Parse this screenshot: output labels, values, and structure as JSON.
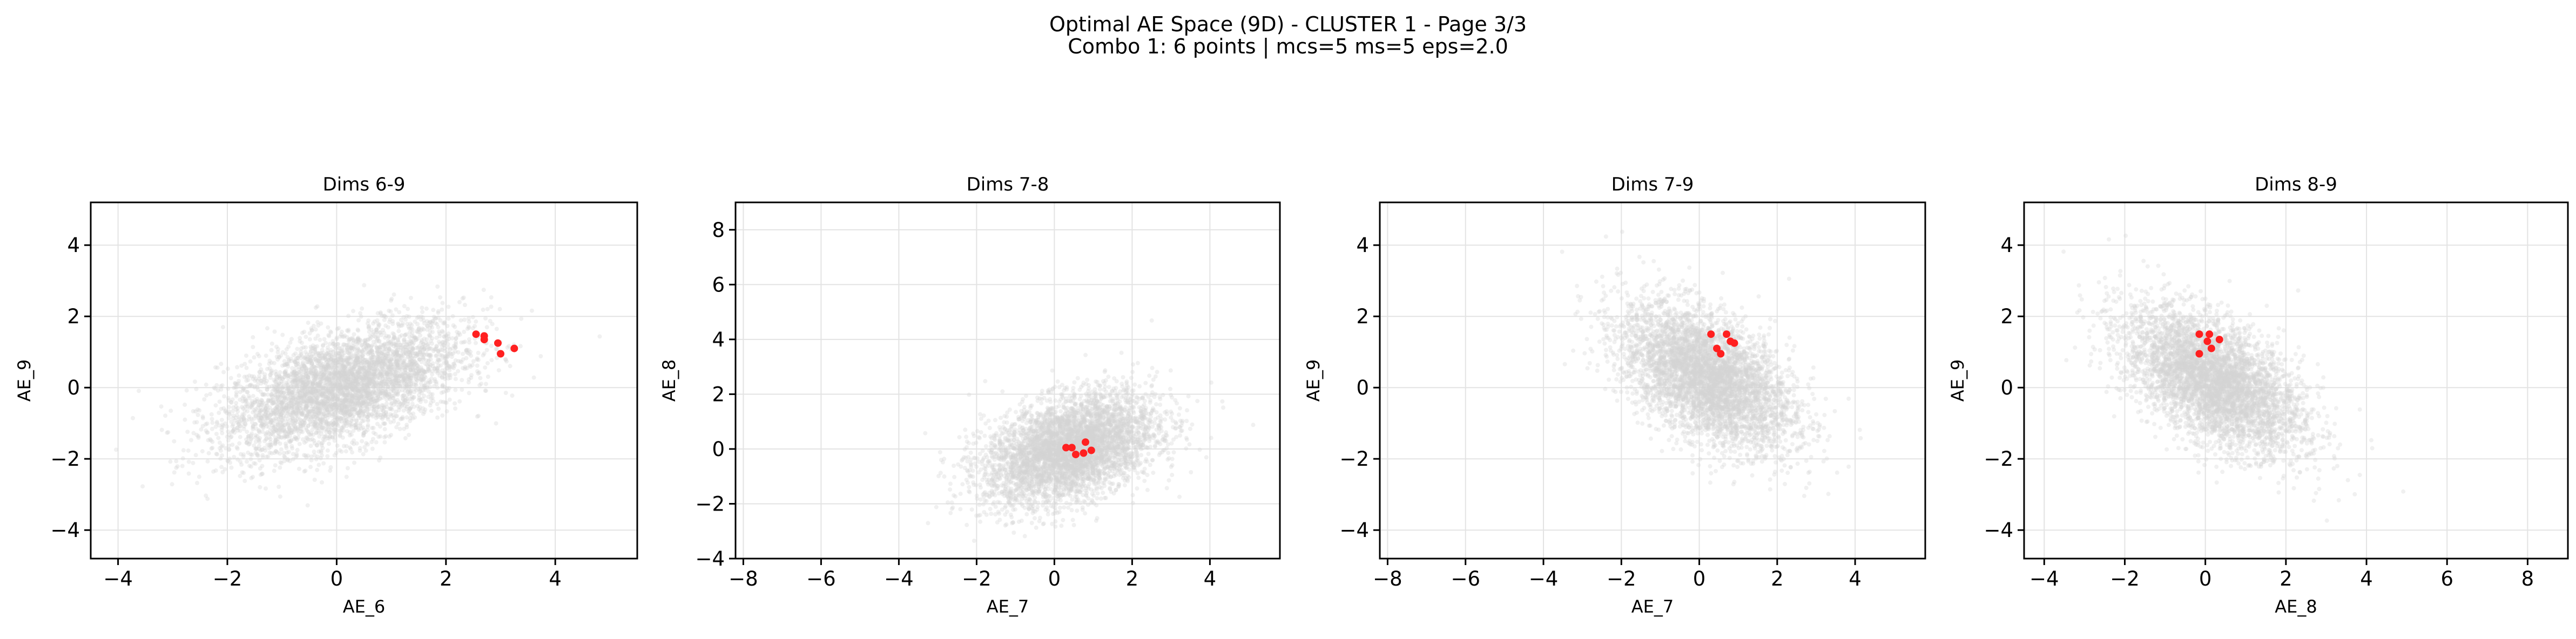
{
  "figure": {
    "title_line1": "Optimal AE Space (9D) - CLUSTER 1 - Page 3/3",
    "title_line2": "Combo 1: 6 points | mcs=5 ms=5 eps=2.0"
  },
  "colors": {
    "background_points": "#d3d3d3",
    "cluster_points": "#ff2020",
    "grid": "#e3e3e3"
  },
  "chart_data": [
    {
      "type": "scatter",
      "title": "Dims 6-9",
      "xlabel": "AE_6",
      "ylabel": "AE_9",
      "xlim": [
        -4.5,
        5.5
      ],
      "ylim": [
        -4.8,
        5.2
      ],
      "xticks": [
        -4,
        -2,
        0,
        2,
        4
      ],
      "yticks": [
        -4,
        -2,
        0,
        2,
        4
      ],
      "grid": true,
      "background_cloud": {
        "cx": 0.1,
        "cy": 0.0,
        "sx": 1.1,
        "sy": 0.9,
        "rho": 0.55
      },
      "cluster_points": [
        [
          2.55,
          1.5
        ],
        [
          2.7,
          1.45
        ],
        [
          2.7,
          1.35
        ],
        [
          2.95,
          1.25
        ],
        [
          3.0,
          0.95
        ],
        [
          3.25,
          1.1
        ]
      ]
    },
    {
      "type": "scatter",
      "title": "Dims 7-8",
      "xlabel": "AE_7",
      "ylabel": "AE_8",
      "xlim": [
        -8.2,
        5.8
      ],
      "ylim": [
        -4.0,
        9.0
      ],
      "xticks": [
        -8,
        -6,
        -4,
        -2,
        0,
        2,
        4
      ],
      "yticks": [
        -4,
        -2,
        0,
        2,
        4,
        6,
        8
      ],
      "grid": true,
      "background_cloud": {
        "cx": 0.4,
        "cy": 0.0,
        "sx": 1.1,
        "sy": 1.0,
        "rho": 0.4
      },
      "cluster_points": [
        [
          0.3,
          0.05
        ],
        [
          0.45,
          0.05
        ],
        [
          0.55,
          -0.2
        ],
        [
          0.75,
          -0.15
        ],
        [
          0.8,
          0.25
        ],
        [
          0.95,
          -0.05
        ]
      ]
    },
    {
      "type": "scatter",
      "title": "Dims 7-9",
      "xlabel": "AE_7",
      "ylabel": "AE_9",
      "xlim": [
        -8.2,
        5.8
      ],
      "ylim": [
        -4.8,
        5.2
      ],
      "xticks": [
        -8,
        -6,
        -4,
        -2,
        0,
        2,
        4
      ],
      "yticks": [
        -4,
        -2,
        0,
        2,
        4
      ],
      "grid": true,
      "background_cloud": {
        "cx": 0.2,
        "cy": 0.3,
        "sx": 1.1,
        "sy": 1.0,
        "rho": -0.5
      },
      "cluster_points": [
        [
          0.3,
          1.5
        ],
        [
          0.45,
          1.1
        ],
        [
          0.55,
          0.95
        ],
        [
          0.7,
          1.5
        ],
        [
          0.8,
          1.3
        ],
        [
          0.9,
          1.25
        ]
      ]
    },
    {
      "type": "scatter",
      "title": "Dims 8-9",
      "xlabel": "AE_8",
      "ylabel": "AE_9",
      "xlim": [
        -4.5,
        9.0
      ],
      "ylim": [
        -4.8,
        5.2
      ],
      "xticks": [
        -4,
        -2,
        0,
        2,
        4,
        6,
        8
      ],
      "yticks": [
        -4,
        -2,
        0,
        2,
        4
      ],
      "grid": true,
      "background_cloud": {
        "cx": 0.2,
        "cy": 0.2,
        "sx": 1.1,
        "sy": 1.0,
        "rho": -0.55
      },
      "cluster_points": [
        [
          -0.15,
          1.5
        ],
        [
          -0.15,
          0.95
        ],
        [
          0.05,
          1.3
        ],
        [
          0.1,
          1.5
        ],
        [
          0.15,
          1.1
        ],
        [
          0.35,
          1.35
        ]
      ]
    }
  ]
}
